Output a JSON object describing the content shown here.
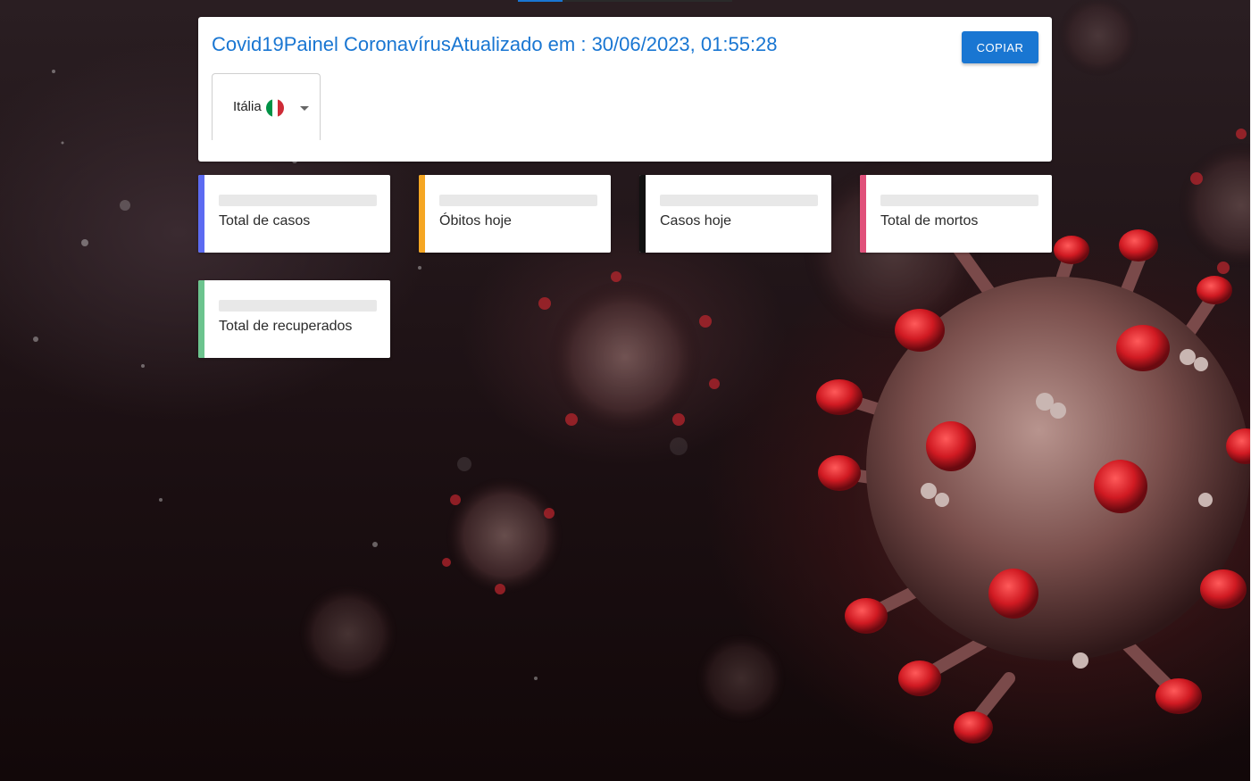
{
  "header": {
    "title": "Covid19Painel CoronavírusAtualizado em : 30/06/2023, 01:55:28",
    "copy_button": "COPIAR"
  },
  "country_select": {
    "selected": "Itália",
    "flag_icon": "italy-flag-icon"
  },
  "stats": [
    {
      "label": "Total de casos",
      "accent": "#5c6bf2"
    },
    {
      "label": "Óbitos hoje",
      "accent": "#f5a623"
    },
    {
      "label": "Casos hoje",
      "accent": "#111111"
    },
    {
      "label": "Total de mortos",
      "accent": "#e0507a"
    },
    {
      "label": "Total de recuperados",
      "accent": "#6cc48e"
    }
  ],
  "colors": {
    "primary": "#1976d2",
    "flag_green": "#009246",
    "flag_white": "#ffffff",
    "flag_red": "#ce2b37"
  }
}
